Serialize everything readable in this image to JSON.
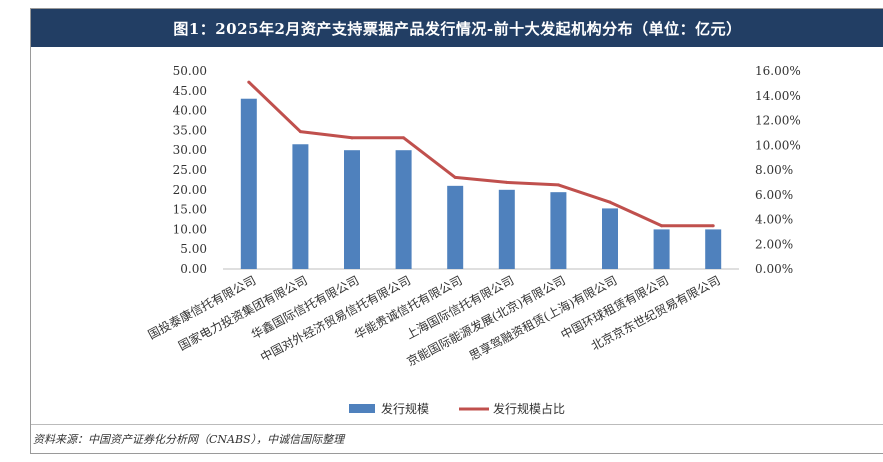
{
  "header": {
    "title": "图1：2025年2月资产支持票据产品发行情况-前十大发起机构分布（单位：亿元）"
  },
  "source": "资料来源：中国资产证券化分析网（CNABS），中诚信国际整理",
  "chart_data": {
    "type": "bar",
    "title": "图1：2025年2月资产支持票据产品发行情况-前十大发起机构分布（单位：亿元）",
    "categories": [
      "国投泰康信托有限公司",
      "国家电力投资集团有限公司",
      "华鑫国际信托有限公司",
      "中国对外经济贸易信托有限公司",
      "华能贵诚信托有限公司",
      "上海国际信托有限公司",
      "京能国际能源发展(北京)有限公司",
      "思享驾融资租赁(上海)有限公司",
      "中国环球租赁有限公司",
      "北京京东世纪贸易有限公司"
    ],
    "series": [
      {
        "name": "发行规模",
        "type": "bar",
        "axis": "left",
        "color": "#4f81bd",
        "values": [
          43.0,
          31.5,
          30.0,
          30.0,
          21.0,
          20.0,
          19.4,
          15.3,
          10.0,
          10.0
        ]
      },
      {
        "name": "发行规模占比",
        "type": "line",
        "axis": "right",
        "color": "#c0504d",
        "values": [
          15.1,
          11.1,
          10.6,
          10.6,
          7.4,
          7.0,
          6.8,
          5.4,
          3.5,
          3.5
        ]
      }
    ],
    "y_left": {
      "min": 0,
      "max": 50,
      "step": 5,
      "ticks": [
        "0.00",
        "5.00",
        "10.00",
        "15.00",
        "20.00",
        "25.00",
        "30.00",
        "35.00",
        "40.00",
        "45.00",
        "50.00"
      ]
    },
    "y_right": {
      "min": 0,
      "max": 16,
      "step": 2,
      "ticks": [
        "0.00%",
        "2.00%",
        "4.00%",
        "6.00%",
        "8.00%",
        "10.00%",
        "12.00%",
        "14.00%",
        "16.00%"
      ]
    },
    "grid": false,
    "legend_position": "bottom"
  }
}
